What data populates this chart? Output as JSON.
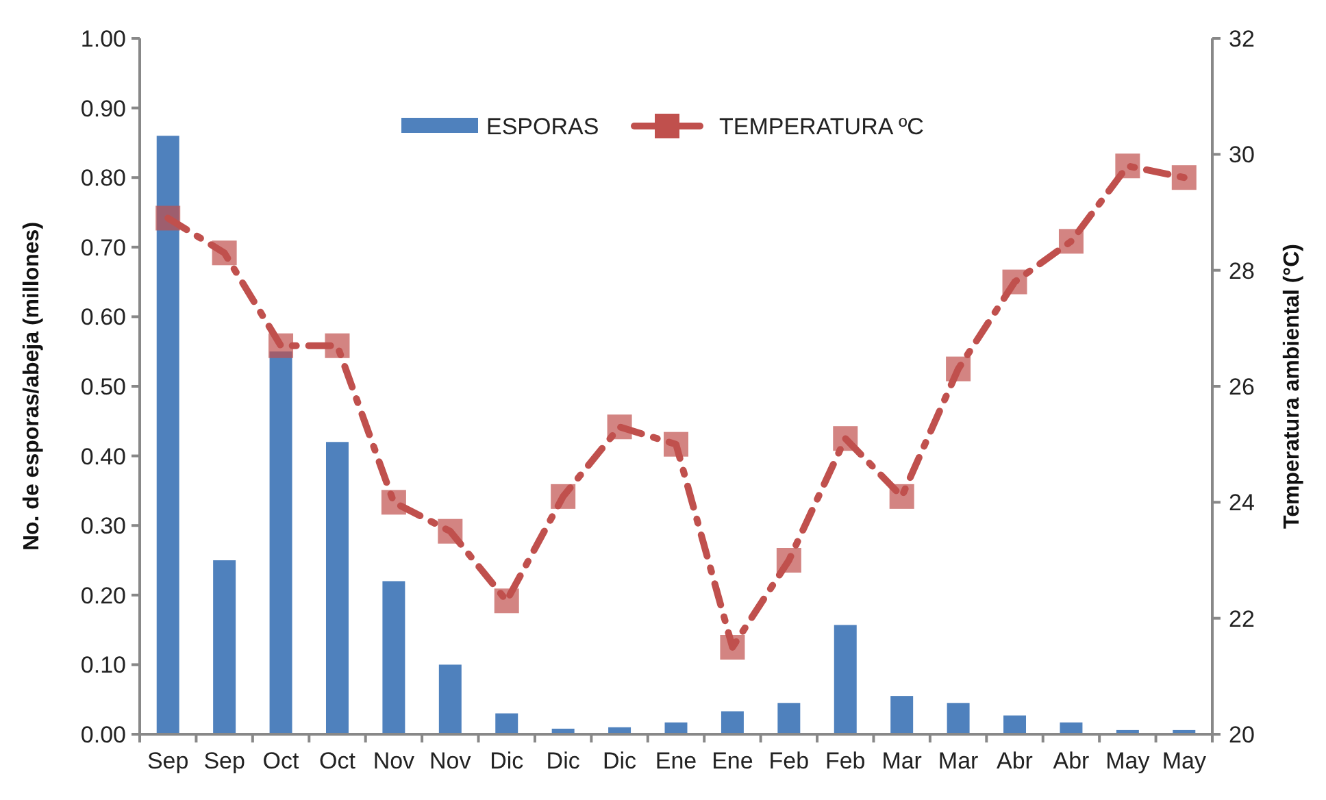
{
  "chart_data": {
    "type": "bar",
    "ylabel": "No. de esporas/abeja (millones)",
    "y2label": "Temperatura ambiental (°C)",
    "categories": [
      "Sep",
      "Sep",
      "Oct",
      "Oct",
      "Nov",
      "Nov",
      "Dic",
      "Dic",
      "Dic",
      "Ene",
      "Ene",
      "Feb",
      "Feb",
      "Mar",
      "Mar",
      "Abr",
      "Abr",
      "May",
      "May"
    ],
    "series": [
      {
        "name": "ESPORAS",
        "color": "#4f81bd",
        "values": [
          0.86,
          0.25,
          0.55,
          0.42,
          0.22,
          0.1,
          0.03,
          0.008,
          0.01,
          0.017,
          0.033,
          0.045,
          0.157,
          0.055,
          0.045,
          0.027,
          0.017,
          0.006,
          0.006
        ]
      },
      {
        "name": "TEMPERATURA ºC",
        "type": "line",
        "axis": "y2",
        "color": "#c0504d",
        "marker": "square",
        "line_style": "dashed",
        "values": [
          28.9,
          28.3,
          26.7,
          26.7,
          24.0,
          23.5,
          22.3,
          24.1,
          25.3,
          25.0,
          21.5,
          23.0,
          25.1,
          24.1,
          26.3,
          27.8,
          28.5,
          29.8,
          29.6
        ]
      }
    ],
    "ylim": [
      0,
      1
    ],
    "yticks": [
      {
        "value": 0,
        "label": "0.00"
      },
      {
        "value": 0.1,
        "label": "0.10"
      },
      {
        "value": 0.2,
        "label": "0.20"
      },
      {
        "value": 0.3,
        "label": "0.30"
      },
      {
        "value": 0.4,
        "label": "0.40"
      },
      {
        "value": 0.5,
        "label": "0.50"
      },
      {
        "value": 0.6,
        "label": "0.60"
      },
      {
        "value": 0.7,
        "label": "0.70"
      },
      {
        "value": 0.8,
        "label": "0.80"
      },
      {
        "value": 0.9,
        "label": "0.90"
      },
      {
        "value": 1,
        "label": "1.00"
      }
    ],
    "y2lim": [
      20,
      32
    ],
    "y2ticks": [
      20,
      22,
      24,
      26,
      28,
      30,
      32
    ],
    "legend": "top",
    "grid": false
  }
}
